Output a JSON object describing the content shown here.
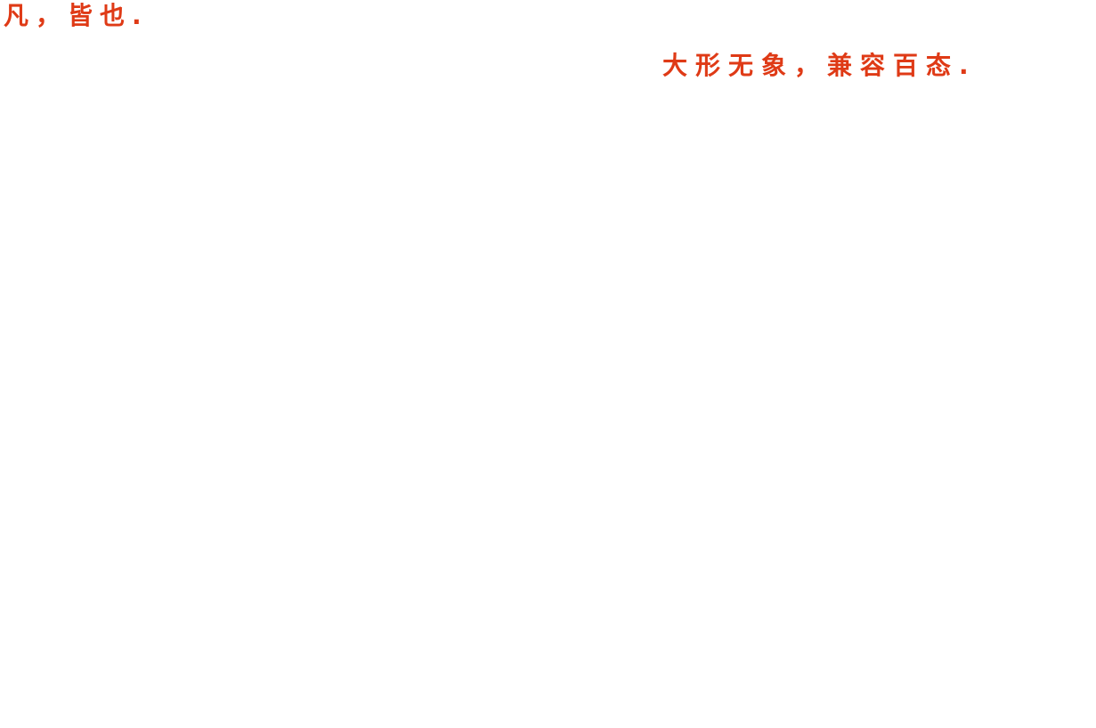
{
  "page": {
    "background_color": "#ffffff",
    "accent_color": "#df3a16",
    "captions": {
      "fan_definition": {
        "content": "凡，皆也."
      },
      "slogan": {
        "content": "大形无象，兼容百态."
      }
    }
  }
}
